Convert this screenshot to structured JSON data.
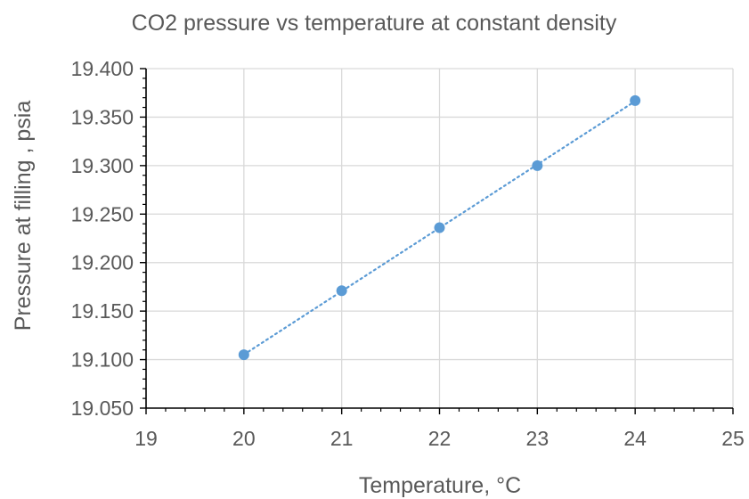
{
  "chart_data": {
    "type": "scatter",
    "title": "CO2 pressure vs temperature at constant density",
    "xlabel": "Temperature, °C",
    "ylabel": "Pressure at filling , psia",
    "xlim": [
      19,
      25
    ],
    "ylim": [
      19.05,
      19.4
    ],
    "x_ticks": [
      "19",
      "20",
      "21",
      "22",
      "23",
      "24",
      "25"
    ],
    "y_ticks": [
      "19.050",
      "19.100",
      "19.150",
      "19.200",
      "19.250",
      "19.300",
      "19.350",
      "19.400"
    ],
    "grid": true,
    "trendline": "linear-dotted",
    "colors": {
      "marker": "#5b9bd5",
      "trendline": "#5b9bd5",
      "grid": "#d9d9d9",
      "axis": "#000000",
      "text": "#595959"
    },
    "series": [
      {
        "x": [
          20,
          21,
          22,
          23,
          24
        ],
        "y": [
          19.105,
          19.171,
          19.236,
          19.3,
          19.367
        ]
      }
    ]
  }
}
